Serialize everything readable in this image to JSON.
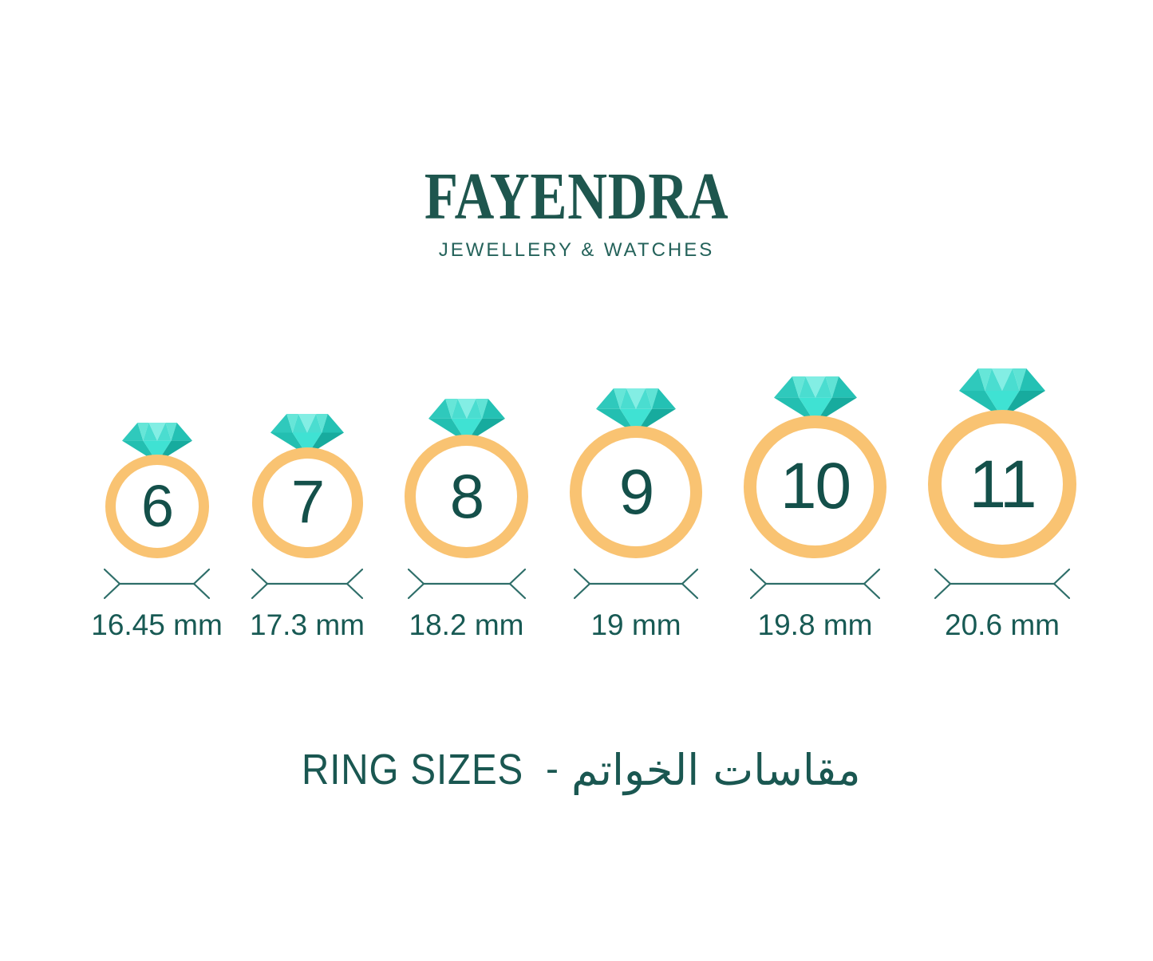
{
  "brand": {
    "name": "FAYENDRA",
    "tagline": "JEWELLERY & WATCHES"
  },
  "rings": [
    {
      "size": "6",
      "diameter_label": "16.45 mm"
    },
    {
      "size": "7",
      "diameter_label": "17.3 mm"
    },
    {
      "size": "8",
      "diameter_label": "18.2 mm"
    },
    {
      "size": "9",
      "diameter_label": "19 mm"
    },
    {
      "size": "10",
      "diameter_label": "19.8 mm"
    },
    {
      "size": "11",
      "diameter_label": "20.6 mm"
    }
  ],
  "footer_title": {
    "en": "RING SIZES",
    "separator": "-",
    "ar": "مقاسات الخواتم"
  },
  "colors": {
    "brand_green": "#1E564E",
    "text_teal": "#14504A",
    "band_orange": "#F9C372",
    "diamond_bright": "#3FE2D3",
    "diamond_light": "#83EEE4",
    "diamond_medium": "#2FC9BC",
    "diamond_dark": "#17AB9E",
    "measure_line": "#2E6E69"
  }
}
